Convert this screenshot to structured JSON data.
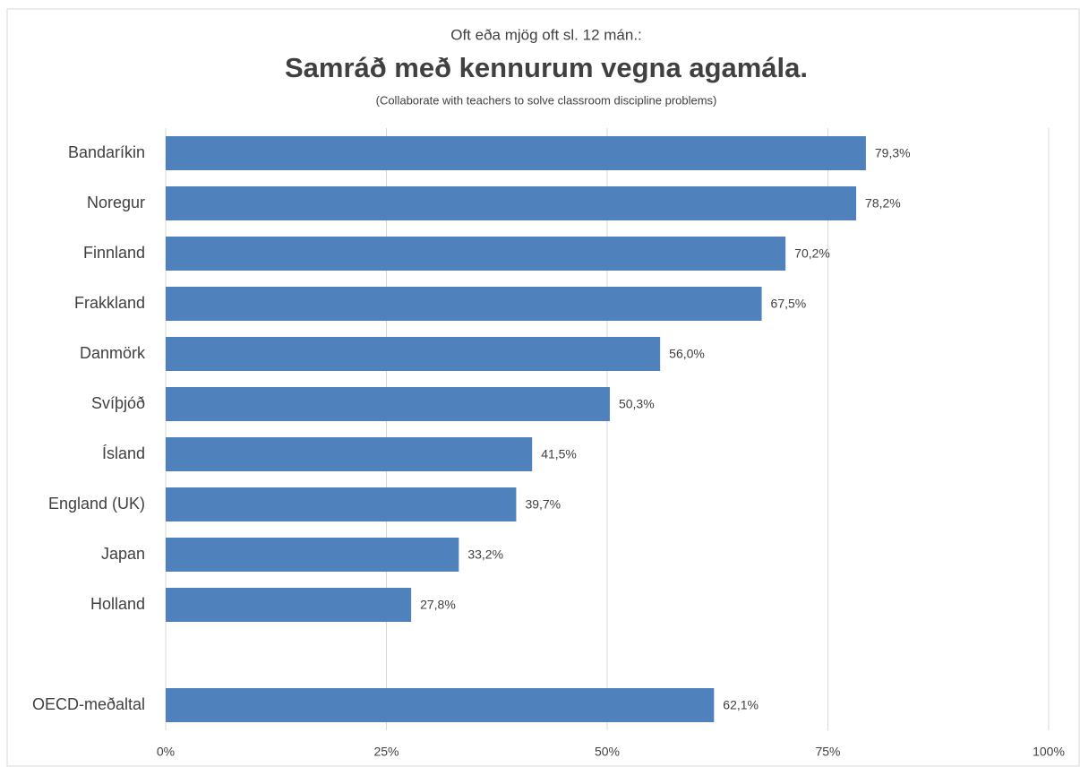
{
  "chart_data": {
    "type": "bar",
    "orientation": "horizontal",
    "supertitle": "Oft eða mjög oft sl. 12 mán.:",
    "title": "Samráð með kennurum vegna agamála.",
    "subtitle": "(Collaborate with teachers to solve classroom discipline problems)",
    "categories": [
      "Bandaríkin",
      "Noregur",
      "Finnland",
      "Frakkland",
      "Danmörk",
      "Svíþjóð",
      "Ísland",
      "England (UK)",
      "Japan",
      "Holland",
      null,
      "OECD-meðaltal"
    ],
    "values": [
      79.3,
      78.2,
      70.2,
      67.5,
      56.0,
      50.3,
      41.5,
      39.7,
      33.2,
      27.8,
      null,
      62.1
    ],
    "value_labels": [
      "79,3%",
      "78,2%",
      "70,2%",
      "67,5%",
      "56,0%",
      "50,3%",
      "41,5%",
      "39,7%",
      "33,2%",
      "27,8%",
      null,
      "62,1%"
    ],
    "color": "#4f81bd",
    "xlim": [
      0,
      100
    ],
    "xticks": [
      {
        "value": 0,
        "label": "0%"
      },
      {
        "value": 25,
        "label": "25%"
      },
      {
        "value": 50,
        "label": "50%"
      },
      {
        "value": 75,
        "label": "75%"
      },
      {
        "value": 100,
        "label": "100%"
      }
    ],
    "grid": true
  }
}
